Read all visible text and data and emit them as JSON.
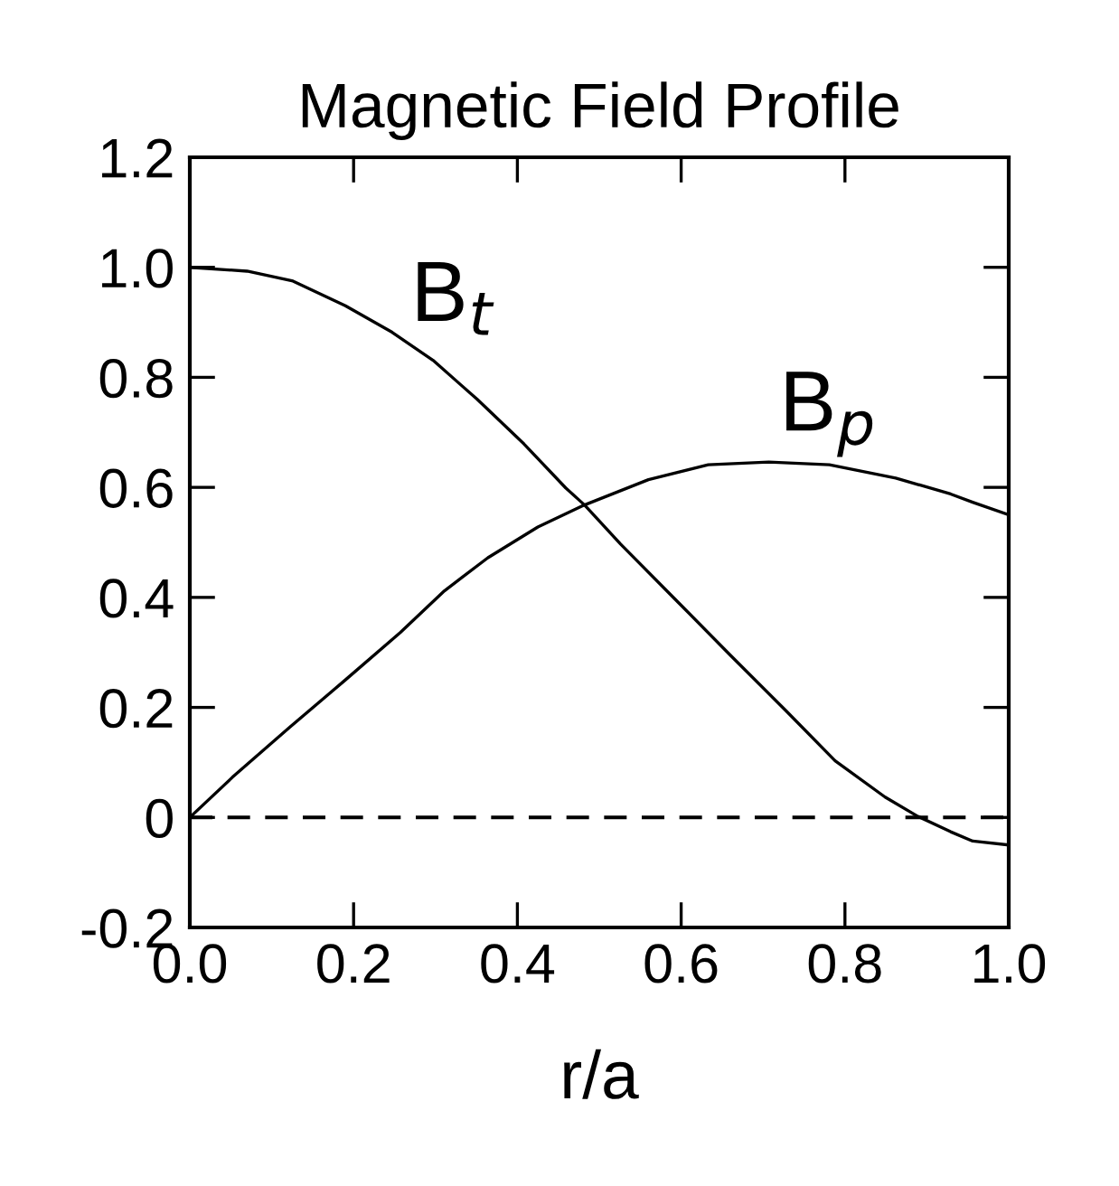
{
  "chart_data": {
    "type": "line",
    "title": "Magnetic Field Profile",
    "xlabel": "r/a",
    "xlim": [
      0.0,
      1.0
    ],
    "xticks": [
      {
        "value": 0,
        "label": "0.0"
      },
      0.2,
      0.4,
      0.6,
      0.8,
      {
        "value": 1,
        "label": "1.0"
      }
    ],
    "ylim": [
      -0.2,
      1.2
    ],
    "yticks": [
      -0.2,
      0,
      0.2,
      0.4,
      0.6,
      0.8,
      {
        "value": 1,
        "label": "1.0"
      },
      1.2
    ],
    "annotations": [
      {
        "text": "B$_{t}$",
        "x": 0.27,
        "y": 0.87
      },
      {
        "text": "B$_{p}$",
        "x": 0.72,
        "y": 0.655
      }
    ],
    "grid": false,
    "legend": false,
    "marker": "none",
    "line_style": "solid",
    "ref_lines": [
      {
        "axis": "y",
        "value": 0,
        "color": "#000000",
        "line_style": "dashed"
      }
    ],
    "series": [
      {
        "color": "#000000",
        "x": [
          0,
          0.07,
          0.126,
          0.19,
          0.247,
          0.297,
          0.351,
          0.408,
          0.459,
          0.482,
          0.526,
          0.593,
          0.66,
          0.728,
          0.788,
          0.849,
          0.889,
          0.929,
          0.956,
          1.0
        ],
        "values": [
          1.0,
          0.993,
          0.975,
          0.93,
          0.882,
          0.831,
          0.76,
          0.679,
          0.599,
          0.568,
          0.497,
          0.396,
          0.295,
          0.194,
          0.103,
          0.037,
          0.002,
          -0.026,
          -0.043,
          -0.05
        ]
      },
      {
        "color": "#000000",
        "x": [
          0,
          0.052,
          0.122,
          0.19,
          0.257,
          0.311,
          0.364,
          0.425,
          0.482,
          0.56,
          0.633,
          0.707,
          0.781,
          0.862,
          0.929,
          0.956,
          1.0
        ],
        "values": [
          0,
          0.073,
          0.164,
          0.25,
          0.336,
          0.412,
          0.472,
          0.528,
          0.568,
          0.614,
          0.641,
          0.646,
          0.641,
          0.617,
          0.588,
          0.573,
          0.55
        ]
      }
    ]
  }
}
